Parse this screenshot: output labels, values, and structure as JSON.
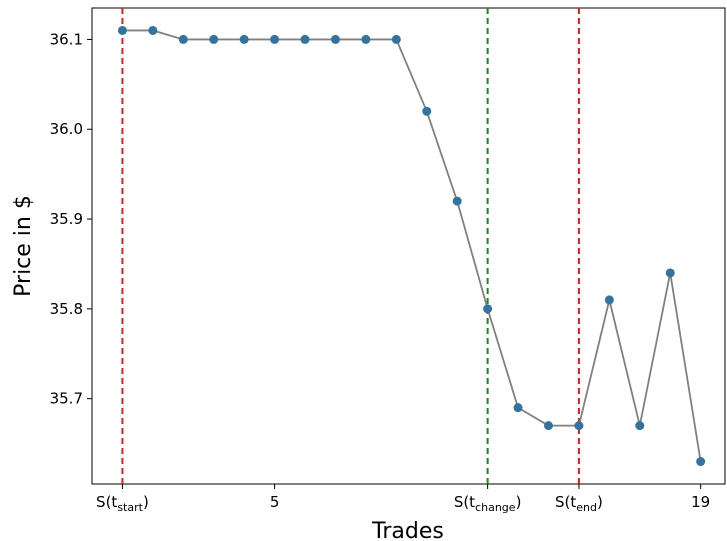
{
  "chart_data": {
    "type": "line",
    "xlabel": "Trades",
    "ylabel": "Price in $",
    "x": [
      0,
      1,
      2,
      3,
      4,
      5,
      6,
      7,
      8,
      9,
      10,
      11,
      12,
      13,
      14,
      15,
      16,
      17,
      18,
      19
    ],
    "series": [
      {
        "values": [
          36.11,
          36.11,
          36.1,
          36.1,
          36.1,
          36.1,
          36.1,
          36.1,
          36.1,
          36.1,
          36.02,
          35.92,
          35.8,
          35.69,
          35.67,
          35.67,
          35.81,
          35.67,
          35.84,
          35.63
        ]
      }
    ],
    "xlim": [
      -1,
      19.8
    ],
    "ylim": [
      35.605,
      36.135
    ],
    "yticks": [
      35.7,
      35.8,
      35.9,
      36.0,
      36.1
    ],
    "ytick_labels": [
      "35.7",
      "35.8",
      "35.9",
      "36.0",
      "36.1"
    ],
    "xticks": [
      {
        "x": 0,
        "base": "S(t",
        "sub": "start",
        "close": ")"
      },
      {
        "x": 5,
        "base": "5",
        "sub": "",
        "close": ""
      },
      {
        "x": 12,
        "base": "S(t",
        "sub": "change",
        "close": ")"
      },
      {
        "x": 15,
        "base": "S(t",
        "sub": "end",
        "close": ")"
      },
      {
        "x": 19,
        "base": "19",
        "sub": "",
        "close": ""
      }
    ],
    "vlines": [
      {
        "x": 0,
        "color": "#e41a1c",
        "style": "dashed"
      },
      {
        "x": 12,
        "color": "#1a8a1a",
        "style": "dashed"
      },
      {
        "x": 15,
        "color": "#e41a1c",
        "style": "dashed"
      }
    ],
    "line_color": "#808080",
    "marker_color": "#3274a1",
    "grid": false
  }
}
